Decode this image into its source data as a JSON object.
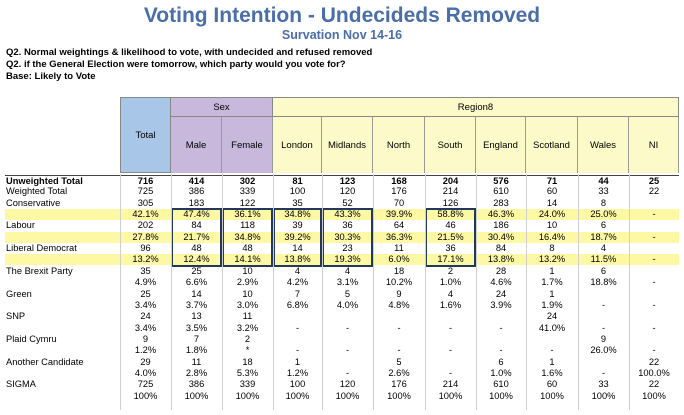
{
  "title": "Voting Intention - Undecideds Removed",
  "subtitle": "Survation Nov 14-16",
  "questions": [
    "Q2. Normal weightings & likelihood to vote, with undecided and refused removed",
    "Q2. if the General Election were tomorrow, which party would you vote for?",
    "Base: Likely to Vote"
  ],
  "header": {
    "total": "Total",
    "sex": "Sex",
    "region": "Region8",
    "columns": [
      "Male",
      "Female",
      "London",
      "Midlands",
      "North",
      "South",
      "England",
      "Scotland",
      "Wales",
      "NI"
    ]
  },
  "colors": {
    "total_header": "#a7c6e8",
    "sex_header": "#c7b8dc",
    "region_header": "#fdfac9",
    "highlight": "#fcf8a4",
    "title": "#4a6ea8",
    "box": "#23395b"
  },
  "rows": [
    {
      "label": "Unweighted Total",
      "values": [
        "716",
        "414",
        "302",
        "81",
        "123",
        "168",
        "204",
        "576",
        "71",
        "44",
        "25"
      ],
      "bold": true,
      "topBorder": true
    },
    {
      "label": "Weighted Total",
      "values": [
        "725",
        "386",
        "339",
        "100",
        "120",
        "176",
        "214",
        "610",
        "60",
        "33",
        "22"
      ]
    },
    {
      "label": "Conservative",
      "values": [
        "305",
        "183",
        "122",
        "35",
        "52",
        "70",
        "126",
        "283",
        "14",
        "8",
        ""
      ]
    },
    {
      "label": "",
      "values": [
        "42.1%",
        "47.4%",
        "36.1%",
        "34.8%",
        "43.3%",
        "39.9%",
        "58.8%",
        "46.3%",
        "24.0%",
        "25.0%",
        "-"
      ],
      "highlight": true
    },
    {
      "label": "Labour",
      "values": [
        "202",
        "84",
        "118",
        "39",
        "36",
        "64",
        "46",
        "186",
        "10",
        "6",
        ""
      ]
    },
    {
      "label": "",
      "values": [
        "27.8%",
        "21.7%",
        "34.8%",
        "39.2%",
        "30.3%",
        "36.3%",
        "21.5%",
        "30.4%",
        "16.4%",
        "18.7%",
        "-"
      ],
      "highlight": true
    },
    {
      "label": "Liberal Democrat",
      "values": [
        "96",
        "48",
        "48",
        "14",
        "23",
        "11",
        "36",
        "84",
        "8",
        "4",
        ""
      ]
    },
    {
      "label": "",
      "values": [
        "13.2%",
        "12.4%",
        "14.1%",
        "13.8%",
        "19.3%",
        "6.0%",
        "17.1%",
        "13.8%",
        "13.2%",
        "11.5%",
        "-"
      ],
      "highlight": true
    },
    {
      "label": "The Brexit Party",
      "values": [
        "35",
        "25",
        "10",
        "4",
        "4",
        "18",
        "2",
        "28",
        "1",
        "6",
        ""
      ]
    },
    {
      "label": "",
      "values": [
        "4.9%",
        "6.6%",
        "2.9%",
        "4.2%",
        "3.1%",
        "10.2%",
        "1.0%",
        "4.6%",
        "1.7%",
        "18.8%",
        "-"
      ]
    },
    {
      "label": "Green",
      "values": [
        "25",
        "14",
        "10",
        "7",
        "5",
        "9",
        "4",
        "24",
        "1",
        "",
        ""
      ]
    },
    {
      "label": "",
      "values": [
        "3.4%",
        "3.7%",
        "3.0%",
        "6.8%",
        "4.0%",
        "4.8%",
        "1.6%",
        "3.9%",
        "1.9%",
        "-",
        "-"
      ]
    },
    {
      "label": "SNP",
      "values": [
        "24",
        "13",
        "11",
        "",
        "",
        "",
        "",
        "",
        "24",
        "",
        ""
      ]
    },
    {
      "label": "",
      "values": [
        "3.4%",
        "3.5%",
        "3.2%",
        "-",
        "-",
        "-",
        "-",
        "-",
        "41.0%",
        "-",
        "-"
      ]
    },
    {
      "label": "Plaid Cymru",
      "values": [
        "9",
        "7",
        "2",
        "",
        "",
        "",
        "",
        "",
        "",
        "9",
        ""
      ]
    },
    {
      "label": "",
      "values": [
        "1.2%",
        "1.8%",
        "*",
        "-",
        "-",
        "-",
        "-",
        "-",
        "-",
        "26.0%",
        "-"
      ]
    },
    {
      "label": "Another Candidate",
      "values": [
        "29",
        "11",
        "18",
        "1",
        "",
        "5",
        "",
        "6",
        "1",
        "",
        "22"
      ]
    },
    {
      "label": "",
      "values": [
        "4.0%",
        "2.8%",
        "5.3%",
        "1.2%",
        "-",
        "2.6%",
        "-",
        "1.0%",
        "1.6%",
        "-",
        "100.0%"
      ]
    },
    {
      "label": "SIGMA",
      "values": [
        "725",
        "386",
        "339",
        "100",
        "120",
        "176",
        "214",
        "610",
        "60",
        "33",
        "22"
      ]
    },
    {
      "label": "",
      "values": [
        "100%",
        "100%",
        "100%",
        "100%",
        "100%",
        "100%",
        "100%",
        "100%",
        "100%",
        "100%",
        "100%"
      ]
    }
  ]
}
